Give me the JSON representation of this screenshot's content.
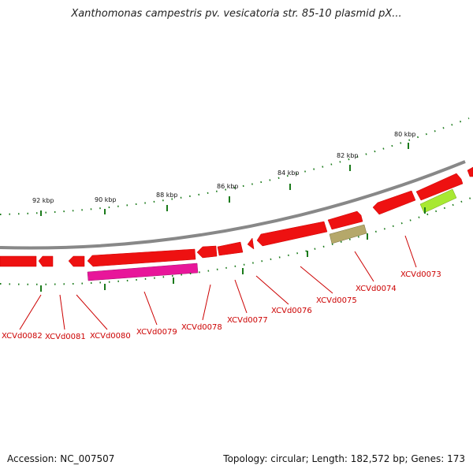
{
  "title": "Xanthomonas campestris pv. vesicatoria str. 85-10 plasmid pX...",
  "footer": {
    "accession": "Accession: NC_007507",
    "summary": "Topology: circular; Length: 182,572 bp; Genes: 173"
  },
  "ruler": {
    "labels": [
      "92 kbp",
      "90 kbp",
      "88 kbp",
      "86 kbp",
      "84 kbp",
      "82 kbp",
      "80 kbp"
    ]
  },
  "genes": [
    {
      "label": "XCVd0082",
      "color": "#ee1111"
    },
    {
      "label": "XCVd0081",
      "color": "#ee1111"
    },
    {
      "label": "XCVd0080",
      "color": "#ee1111"
    },
    {
      "label": "XCVd0079",
      "color": "#ee1111"
    },
    {
      "label": "XCVd0078",
      "color": "#ee1111"
    },
    {
      "label": "XCVd0077",
      "color": "#ee1111"
    },
    {
      "label": "XCVd0076",
      "color": "#ee1111"
    },
    {
      "label": "XCVd0075",
      "color": "#ee1111"
    },
    {
      "label": "XCVd0074",
      "color": "#ee1111"
    },
    {
      "label": "XCVd0073",
      "color": "#ee1111"
    }
  ],
  "colors": {
    "backbone": "#888888",
    "gene": "#ee1111",
    "tick": "#1a7a1a",
    "label": "#cc0000",
    "feature_magenta": "#e8169a",
    "feature_olive": "#b5a86a",
    "feature_lime": "#a8e832"
  }
}
